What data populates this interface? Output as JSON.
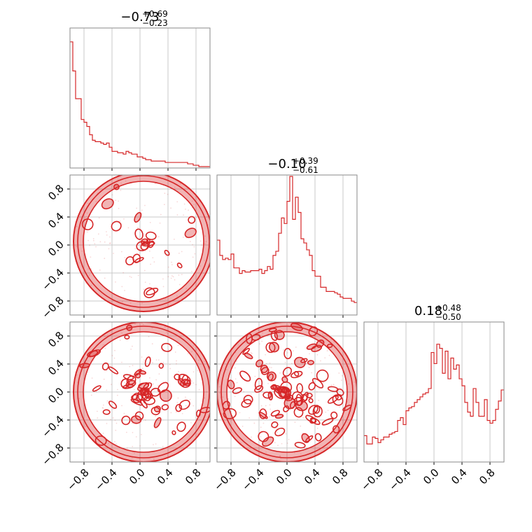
{
  "color": "#d62728",
  "chart_data": {
    "type": "corner",
    "axis_range": [
      -1,
      1
    ],
    "ticks": [
      -0.8,
      -0.4,
      0.0,
      0.4,
      0.8
    ],
    "tick_labels": [
      "−0.8",
      "−0.4",
      "0.0",
      "0.4",
      "0.8"
    ],
    "grid": true,
    "bins": 50,
    "titles": [
      {
        "main": "−0.73",
        "plus": "+0.69",
        "minus": "−0.23"
      },
      {
        "main": "−0.10",
        "plus": "+0.39",
        "minus": "−0.61"
      },
      {
        "main": "0.18",
        "plus": "+0.48",
        "minus": "−0.50"
      }
    ],
    "histograms": [
      {
        "parameter": 1,
        "counts": [
          0.91,
          0.7,
          0.5,
          0.5,
          0.35,
          0.33,
          0.3,
          0.24,
          0.2,
          0.19,
          0.19,
          0.18,
          0.17,
          0.18,
          0.15,
          0.12,
          0.12,
          0.11,
          0.11,
          0.1,
          0.12,
          0.11,
          0.1,
          0.1,
          0.08,
          0.08,
          0.07,
          0.06,
          0.06,
          0.05,
          0.05,
          0.05,
          0.05,
          0.05,
          0.04,
          0.04,
          0.04,
          0.04,
          0.04,
          0.04,
          0.04,
          0.04,
          0.03,
          0.03,
          0.02,
          0.02,
          0.01,
          0.01,
          0.01,
          0.01
        ]
      },
      {
        "parameter": 2,
        "counts": [
          0.54,
          0.43,
          0.4,
          0.41,
          0.4,
          0.44,
          0.34,
          0.34,
          0.3,
          0.32,
          0.31,
          0.31,
          0.32,
          0.32,
          0.32,
          0.33,
          0.3,
          0.32,
          0.35,
          0.33,
          0.43,
          0.46,
          0.59,
          0.7,
          0.66,
          0.82,
          1.0,
          0.69,
          0.85,
          0.74,
          0.55,
          0.52,
          0.47,
          0.43,
          0.32,
          0.28,
          0.28,
          0.2,
          0.2,
          0.17,
          0.17,
          0.17,
          0.16,
          0.15,
          0.13,
          0.12,
          0.12,
          0.12,
          0.1,
          0.09
        ]
      },
      {
        "parameter": 3,
        "counts": [
          0.19,
          0.13,
          0.13,
          0.18,
          0.17,
          0.14,
          0.16,
          0.18,
          0.18,
          0.2,
          0.21,
          0.22,
          0.3,
          0.32,
          0.27,
          0.37,
          0.39,
          0.4,
          0.43,
          0.45,
          0.47,
          0.49,
          0.5,
          0.53,
          0.79,
          0.71,
          0.85,
          0.82,
          0.64,
          0.8,
          0.6,
          0.75,
          0.67,
          0.7,
          0.6,
          0.55,
          0.43,
          0.36,
          0.33,
          0.53,
          0.43,
          0.33,
          0.33,
          0.45,
          0.3,
          0.28,
          0.3,
          0.38,
          0.44,
          0.52
        ]
      }
    ],
    "panels_2d": [
      {
        "x_param": 1,
        "y_param": 2
      },
      {
        "x_param": 1,
        "y_param": 3
      },
      {
        "x_param": 2,
        "y_param": 3
      }
    ]
  }
}
